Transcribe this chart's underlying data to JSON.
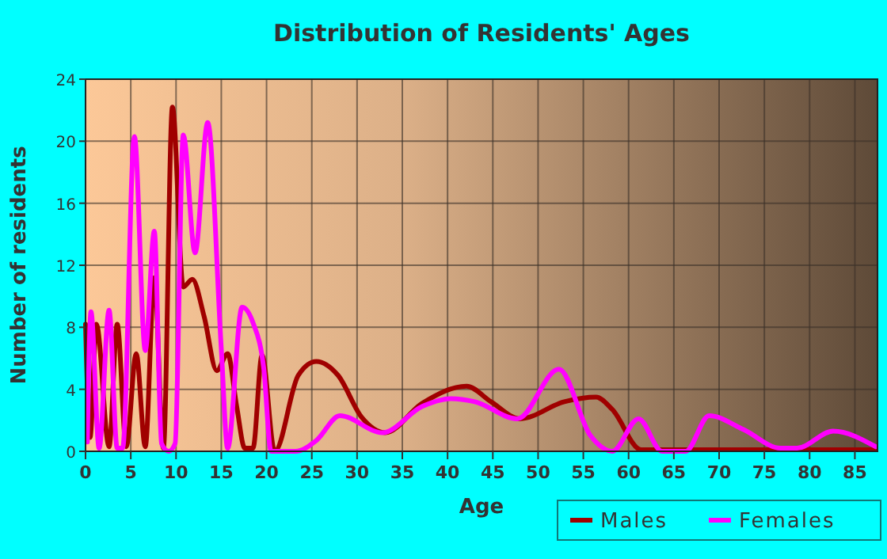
{
  "chart_data": {
    "type": "line",
    "title": "Distribution of Residents' Ages",
    "xlabel": "Age",
    "ylabel": "Number of residents",
    "xlim": [
      0,
      87.5
    ],
    "xticks": [
      0,
      5,
      10,
      15,
      20,
      25,
      30,
      35,
      40,
      45,
      50,
      55,
      60,
      65,
      70,
      75,
      80,
      85
    ],
    "ylim": [
      0,
      24
    ],
    "yticks": [
      0,
      4,
      8,
      12,
      16,
      20,
      24
    ],
    "grid": true,
    "legend": "bottom",
    "line_style": "solid",
    "series": [
      {
        "name": "Males",
        "color": "#a00000",
        "x": [
          0,
          0.5,
          1.2,
          2.6,
          3.5,
          4.5,
          5.6,
          6.6,
          7.6,
          8.6,
          9.6,
          10.8,
          11.8,
          13.1,
          14.5,
          15.7,
          16.7,
          17.6,
          18.5,
          19.5,
          20.9,
          23.5,
          25.5,
          27.9,
          30.5,
          33.1,
          37.2,
          42.1,
          44.8,
          48.0,
          52.9,
          56.4,
          58.2,
          61.4,
          87.3
        ],
        "values": [
          8.2,
          0.9,
          8.2,
          0.3,
          8.2,
          0.3,
          6.3,
          0.3,
          11.2,
          0.2,
          22.2,
          10.6,
          11.1,
          8.7,
          5.2,
          6.3,
          2.9,
          0.2,
          0.2,
          6.2,
          0,
          4.9,
          5.8,
          4.9,
          2.2,
          1.2,
          3.1,
          4.2,
          3.2,
          2.1,
          3.2,
          3.5,
          2.7,
          0.1,
          0.1
        ]
      },
      {
        "name": "Females",
        "color": "#ff00ff",
        "x": [
          0.2,
          0.6,
          1.5,
          2.6,
          3.5,
          4.1,
          5.4,
          6.6,
          7.6,
          8.4,
          9.2,
          9.9,
          10.8,
          12.1,
          13.5,
          15.0,
          15.7,
          17.3,
          18.5,
          19.7,
          20.5,
          23.2,
          25.5,
          28.1,
          32.8,
          37.2,
          40.4,
          43.0,
          47.7,
          52.3,
          55.8,
          58.2,
          61.1,
          63.7,
          66.3,
          68.9,
          72.7,
          76.8,
          78.6,
          82.6,
          87.3
        ],
        "values": [
          0.6,
          9.0,
          0.2,
          9.1,
          0.2,
          0.2,
          20.3,
          6.5,
          14.2,
          0.5,
          0,
          0.5,
          20.4,
          12.8,
          21.2,
          6.6,
          0.2,
          9.3,
          8.3,
          5.3,
          0,
          0,
          0.7,
          2.3,
          1.2,
          2.9,
          3.4,
          3.2,
          2.1,
          5.3,
          1.0,
          0,
          2.1,
          0,
          0,
          2.3,
          1.4,
          0.2,
          0.2,
          1.3,
          0.3
        ]
      }
    ]
  }
}
